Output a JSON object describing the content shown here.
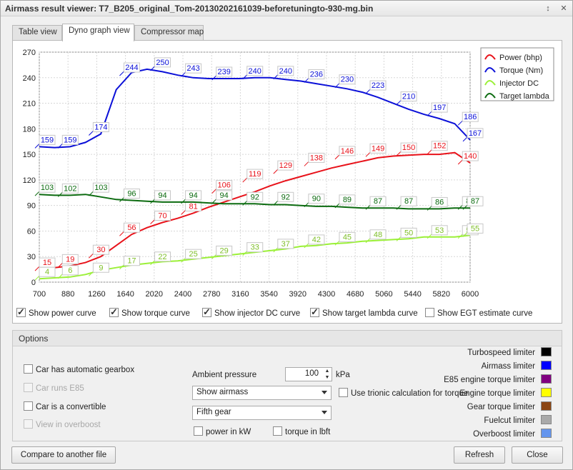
{
  "window": {
    "title": "Airmass result viewer: T7_B205_original_Tom-20130202161039-beforetuningto-930-mg.bin",
    "pin_glyph": "↕",
    "close_glyph": "✕"
  },
  "tabs": [
    {
      "label": "Table view",
      "active": false
    },
    {
      "label": "Dyno graph view",
      "active": true
    },
    {
      "label": "Compressor map",
      "active": false
    }
  ],
  "chart_data": {
    "type": "line",
    "xlim": [
      700,
      6000
    ],
    "ylim": [
      0,
      270
    ],
    "x_ticks": [
      "700",
      "880",
      "1260",
      "1640",
      "2020",
      "2400",
      "2780",
      "3160",
      "3540",
      "3920",
      "4300",
      "4680",
      "5060",
      "5440",
      "5820",
      "6000"
    ],
    "y_ticks": [
      "0",
      "30",
      "60",
      "90",
      "120",
      "150",
      "180",
      "210",
      "240",
      "270"
    ],
    "grid": true,
    "legend_position": "top-right",
    "series": [
      {
        "name": "Power (bhp)",
        "color": "#e8121a",
        "x": [
          700,
          880,
          1070,
          1260,
          1450,
          1640,
          1830,
          2020,
          2210,
          2400,
          2590,
          2780,
          2970,
          3160,
          3350,
          3540,
          3730,
          3920,
          4110,
          4300,
          4490,
          4680,
          4870,
          5060,
          5250,
          5440,
          5630,
          5820,
          6000
        ],
        "y": [
          15,
          17,
          19,
          23,
          30,
          43,
          56,
          64,
          70,
          75,
          81,
          88,
          94,
          100,
          106,
          113,
          119,
          124,
          129,
          134,
          138,
          142,
          146,
          148,
          149,
          150,
          150,
          152,
          140
        ],
        "labels": [
          [
            700,
            15
          ],
          [
            1070,
            19
          ],
          [
            1450,
            30
          ],
          [
            1830,
            56
          ],
          [
            2210,
            70
          ],
          [
            2590,
            81
          ],
          [
            3350,
            106
          ],
          [
            3730,
            119
          ],
          [
            4110,
            129
          ],
          [
            4490,
            138
          ],
          [
            4870,
            146
          ],
          [
            5250,
            149
          ],
          [
            5630,
            150
          ],
          [
            6000,
            152
          ],
          [
            6180,
            140
          ]
        ]
      },
      {
        "name": "Torque (Nm)",
        "color": "#0b10d8",
        "x": [
          700,
          880,
          1070,
          1260,
          1450,
          1640,
          1830,
          2020,
          2210,
          2400,
          2590,
          2780,
          2970,
          3160,
          3350,
          3540,
          3730,
          3920,
          4110,
          4300,
          4490,
          4680,
          4870,
          5060,
          5250,
          5440,
          5630,
          5820,
          6000
        ],
        "y": [
          159,
          158,
          159,
          164,
          174,
          226,
          246,
          250,
          247,
          243,
          240,
          239,
          239,
          239,
          240,
          240,
          238,
          236,
          233,
          230,
          227,
          223,
          217,
          210,
          203,
          197,
          192,
          186,
          167
        ],
        "labels": [
          [
            880,
            159
          ],
          [
            1260,
            159
          ],
          [
            1640,
            174
          ],
          [
            2020,
            244
          ],
          [
            2400,
            250
          ],
          [
            2780,
            243
          ],
          [
            3160,
            239
          ],
          [
            3540,
            240
          ],
          [
            3920,
            240
          ],
          [
            4300,
            236
          ],
          [
            4680,
            230
          ],
          [
            5060,
            223
          ],
          [
            5440,
            210
          ],
          [
            5820,
            197
          ],
          [
            6180,
            186
          ],
          [
            6400,
            167
          ]
        ]
      },
      {
        "name": "Injector DC",
        "color": "#9bf038",
        "x": [
          700,
          880,
          1070,
          1260,
          1450,
          1640,
          1830,
          2020,
          2210,
          2400,
          2590,
          2780,
          2970,
          3160,
          3350,
          3540,
          3730,
          3920,
          4110,
          4300,
          4490,
          4680,
          4870,
          5060,
          5250,
          5440,
          5630,
          5820,
          6000
        ],
        "y": [
          4,
          5,
          6,
          9,
          14,
          17,
          20,
          22,
          24,
          25,
          27,
          29,
          31,
          33,
          35,
          37,
          39,
          42,
          43,
          45,
          46,
          48,
          49,
          50,
          51,
          53,
          53,
          53,
          55
        ],
        "labels": [
          [
            700,
            4
          ],
          [
            1070,
            6
          ],
          [
            1450,
            9
          ],
          [
            1830,
            17
          ],
          [
            2210,
            22
          ],
          [
            2590,
            25
          ],
          [
            2970,
            29
          ],
          [
            3350,
            33
          ],
          [
            3730,
            37
          ],
          [
            4110,
            42
          ],
          [
            4490,
            45
          ],
          [
            4870,
            48
          ],
          [
            5250,
            50
          ],
          [
            5630,
            53
          ],
          [
            6000,
            53
          ],
          [
            6180,
            55
          ]
        ]
      },
      {
        "name": "Target lambda",
        "color": "#0c6b10",
        "x": [
          700,
          880,
          1070,
          1260,
          1450,
          1640,
          1830,
          2020,
          2210,
          2400,
          2590,
          2780,
          2970,
          3160,
          3350,
          3540,
          3730,
          3920,
          4110,
          4300,
          4490,
          4680,
          4870,
          5060,
          5250,
          5440,
          5630,
          5820,
          6000
        ],
        "y": [
          103,
          102,
          102,
          103,
          100,
          97,
          96,
          95,
          94,
          94,
          94,
          93,
          92,
          92,
          92,
          91,
          91,
          90,
          89,
          89,
          88,
          87,
          87,
          87,
          86,
          86,
          86,
          87,
          87
        ],
        "labels": [
          [
            880,
            103
          ],
          [
            1260,
            102
          ],
          [
            1640,
            103
          ],
          [
            2020,
            96
          ],
          [
            2400,
            94
          ],
          [
            2780,
            94
          ],
          [
            3160,
            94
          ],
          [
            3540,
            92
          ],
          [
            3920,
            92
          ],
          [
            4300,
            90
          ],
          [
            4680,
            89
          ],
          [
            5060,
            87
          ],
          [
            5440,
            87
          ],
          [
            5820,
            86
          ],
          [
            6000,
            87
          ],
          [
            6180,
            87
          ]
        ]
      }
    ]
  },
  "curve_checks": [
    {
      "label": "Show power curve",
      "checked": true
    },
    {
      "label": "Show torque curve",
      "checked": true
    },
    {
      "label": "Show injector DC curve",
      "checked": true
    },
    {
      "label": "Show target lambda curve",
      "checked": true
    },
    {
      "label": "Show EGT estimate curve",
      "checked": false
    }
  ],
  "options": {
    "header": "Options",
    "automatic_gearbox": "Car has automatic gearbox",
    "runs_e85": "Car runs E85",
    "convertible": "Car is a convertible",
    "overboost": "View in overboost",
    "ambient_label": "Ambient pressure",
    "ambient_value": "100",
    "ambient_unit": "kPa",
    "trionic_calc": "Use trionic calculation for torque",
    "view_select": "Show airmass",
    "gear_select": "Fifth gear",
    "power_kw": "power in kW",
    "torque_lbft": "torque in lbft"
  },
  "limiters": [
    {
      "label": "Turbospeed limiter",
      "color": "#000000"
    },
    {
      "label": "Airmass limiter",
      "color": "#0000ff"
    },
    {
      "label": "E85 engine torque limiter",
      "color": "#800080"
    },
    {
      "label": "Engine torque limiter",
      "color": "#ffff00"
    },
    {
      "label": "Gear torque limiter",
      "color": "#8b4513"
    },
    {
      "label": "Fuelcut limiter",
      "color": "#a9a9a9"
    },
    {
      "label": "Overboost limiter",
      "color": "#6495ed"
    }
  ],
  "buttons": {
    "compare": "Compare to another file",
    "refresh": "Refresh",
    "close": "Close"
  }
}
